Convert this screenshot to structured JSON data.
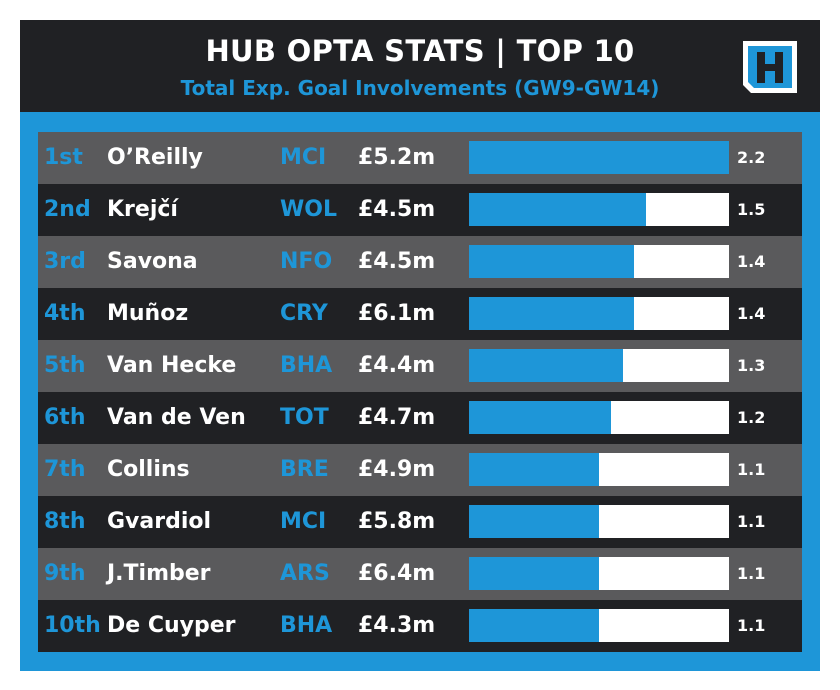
{
  "header": {
    "title": "HUB OPTA STATS | TOP 10",
    "subtitle": "Total Exp. Goal Involvements (GW9-GW14)"
  },
  "colors": {
    "accent": "#1e96d8",
    "dark": "#202124",
    "grey": "#5a5a5c",
    "white": "#ffffff"
  },
  "chart_data": {
    "type": "bar",
    "orientation": "horizontal",
    "xlim": [
      0,
      2.2
    ],
    "rows": [
      {
        "rank": "1st",
        "player": "O’Reilly",
        "team": "MCI",
        "price": "£5.2m",
        "value": 2.2,
        "label": "2.2"
      },
      {
        "rank": "2nd",
        "player": "Krejčí",
        "team": "WOL",
        "price": "£4.5m",
        "value": 1.5,
        "label": "1.5"
      },
      {
        "rank": "3rd",
        "player": "Savona",
        "team": "NFO",
        "price": "£4.5m",
        "value": 1.4,
        "label": "1.4"
      },
      {
        "rank": "4th",
        "player": "Muñoz",
        "team": "CRY",
        "price": "£6.1m",
        "value": 1.4,
        "label": "1.4"
      },
      {
        "rank": "5th",
        "player": "Van Hecke",
        "team": "BHA",
        "price": "£4.4m",
        "value": 1.3,
        "label": "1.3"
      },
      {
        "rank": "6th",
        "player": "Van de Ven",
        "team": "TOT",
        "price": "£4.7m",
        "value": 1.2,
        "label": "1.2"
      },
      {
        "rank": "7th",
        "player": "Collins",
        "team": "BRE",
        "price": "£4.9m",
        "value": 1.1,
        "label": "1.1"
      },
      {
        "rank": "8th",
        "player": "Gvardiol",
        "team": "MCI",
        "price": "£5.8m",
        "value": 1.1,
        "label": "1.1"
      },
      {
        "rank": "9th",
        "player": "J.Timber",
        "team": "ARS",
        "price": "£6.4m",
        "value": 1.1,
        "label": "1.1"
      },
      {
        "rank": "10th",
        "player": "De Cuyper",
        "team": "BHA",
        "price": "£4.3m",
        "value": 1.1,
        "label": "1.1"
      }
    ]
  }
}
